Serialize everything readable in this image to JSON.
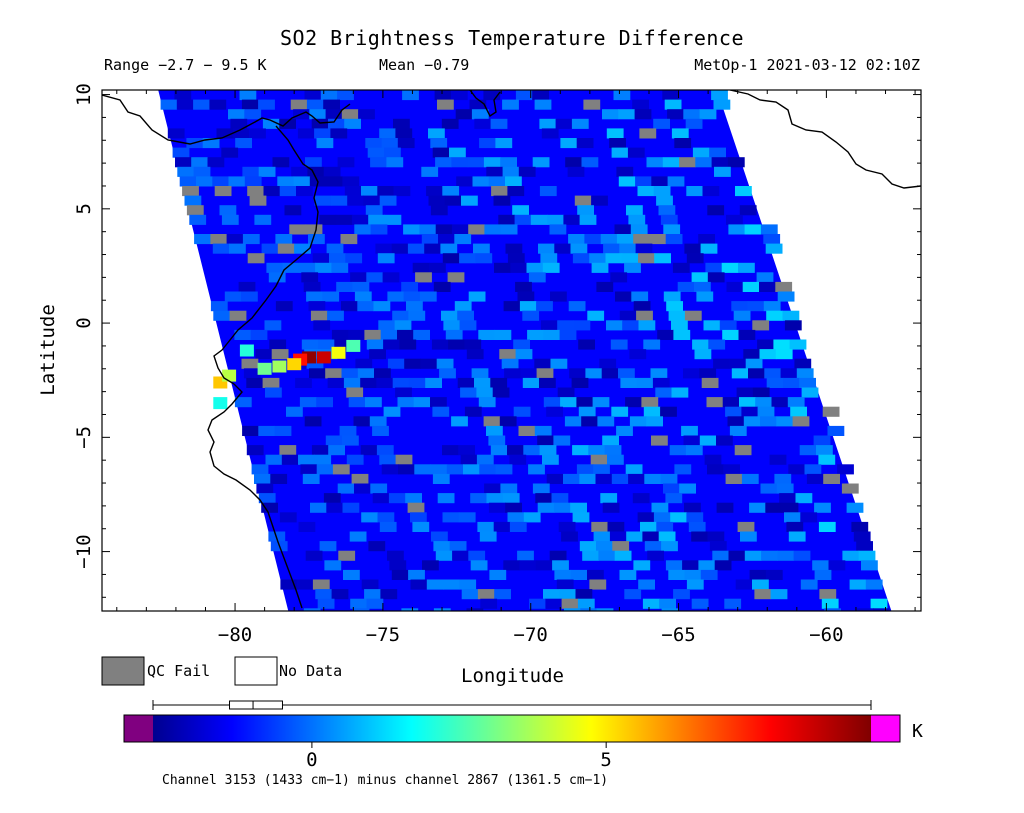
{
  "chart_data": {
    "type": "heatmap",
    "title": "SO2 Brightness Temperature Difference",
    "subtitle_left": "Range −2.7 − 9.5 K",
    "subtitle_center": "Mean −0.79",
    "subtitle_right": "MetOp-1 2021-03-12 02:10Z",
    "xlabel": "Longitude",
    "ylabel": "Latitude",
    "xlim": [
      -84.5,
      -56.8
    ],
    "ylim": [
      -12.6,
      10.2
    ],
    "x_ticks": [
      -80,
      -75,
      -70,
      -65,
      -60
    ],
    "x_tick_labels": [
      "−80",
      "−75",
      "−70",
      "−65",
      "−60"
    ],
    "y_ticks": [
      10,
      5,
      0,
      -5,
      -10
    ],
    "y_tick_labels": [
      "10",
      "5",
      "0",
      "−5",
      "−10"
    ],
    "swath_left_edge": [
      [
        -82.6,
        10.2
      ],
      [
        -78.2,
        -12.6
      ]
    ],
    "swath_right_edge": [
      [
        -63.7,
        10.2
      ],
      [
        -57.8,
        -12.6
      ]
    ],
    "background_value": -1.2,
    "plume": [
      {
        "lon": -77.5,
        "lat": -1.5,
        "value": 9.3
      },
      {
        "lon": -77.0,
        "lat": -1.5,
        "value": 8.6
      },
      {
        "lon": -77.8,
        "lat": -1.6,
        "value": 7.8
      },
      {
        "lon": -78.0,
        "lat": -1.8,
        "value": 5.4
      },
      {
        "lon": -76.5,
        "lat": -1.3,
        "value": 4.8
      },
      {
        "lon": -78.5,
        "lat": -1.9,
        "value": 3.8
      },
      {
        "lon": -79.0,
        "lat": -2.0,
        "value": 3.2
      },
      {
        "lon": -80.5,
        "lat": -2.6,
        "value": 5.6
      },
      {
        "lon": -80.2,
        "lat": -2.3,
        "value": 4.1
      },
      {
        "lon": -76.0,
        "lat": -1.0,
        "value": 2.8
      },
      {
        "lon": -79.6,
        "lat": -1.2,
        "value": 2.3
      },
      {
        "lon": -80.5,
        "lat": -3.5,
        "value": 2.1
      }
    ],
    "colorbar": {
      "min": -2.7,
      "max": 9.5,
      "ticks": [
        0,
        5
      ],
      "tick_labels": [
        "0",
        "5"
      ],
      "unit": "K",
      "underflow_color": "#800080",
      "overflow_color": "#ff00ff",
      "boxplot": {
        "min": -2.7,
        "q1": -1.4,
        "median": -1.0,
        "q3": -0.5,
        "max": 9.5
      },
      "caption": "Channel 3153 (1433 cm−1) minus channel 2867 (1361.5 cm−1)"
    },
    "legend": [
      {
        "label": "QC Fail",
        "color": "#808080"
      },
      {
        "label": "No Data",
        "color": "#ffffff"
      }
    ]
  }
}
